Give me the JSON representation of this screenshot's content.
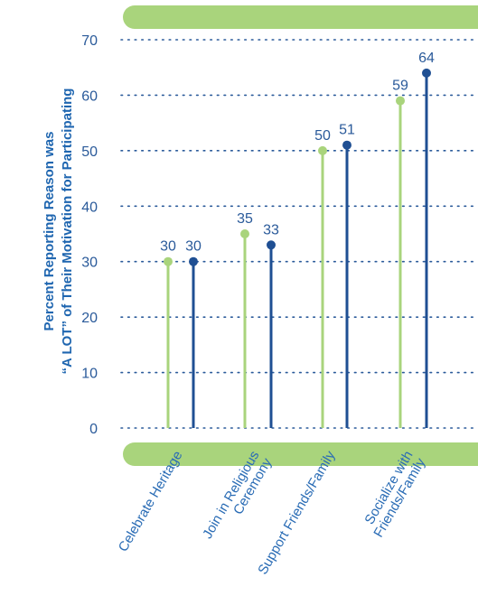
{
  "chart_data": {
    "type": "lollipop",
    "ylabel_line1": "Percent Reporting Reason was",
    "ylabel_line2": "“A LOT” of Their Motivation for Participating",
    "ylim": [
      0,
      70
    ],
    "yticks": [
      "0",
      "10",
      "20",
      "30",
      "40",
      "50",
      "60",
      "70"
    ],
    "grid": "dotted horizontal",
    "categories": [
      {
        "line1": "Celebrate Heritage",
        "line2": ""
      },
      {
        "line1": "Join in Religious",
        "line2": "Ceremony"
      },
      {
        "line1": "Support Friends/Family",
        "line2": ""
      },
      {
        "line1": "Socialize with",
        "line2": "Friends/Family"
      }
    ],
    "series": [
      {
        "values": [
          30,
          35,
          50,
          59
        ],
        "color": "#a9d47c"
      },
      {
        "values": [
          30,
          33,
          51,
          64
        ],
        "color": "#1f4f93"
      }
    ],
    "band_color": "#a9d47c"
  }
}
